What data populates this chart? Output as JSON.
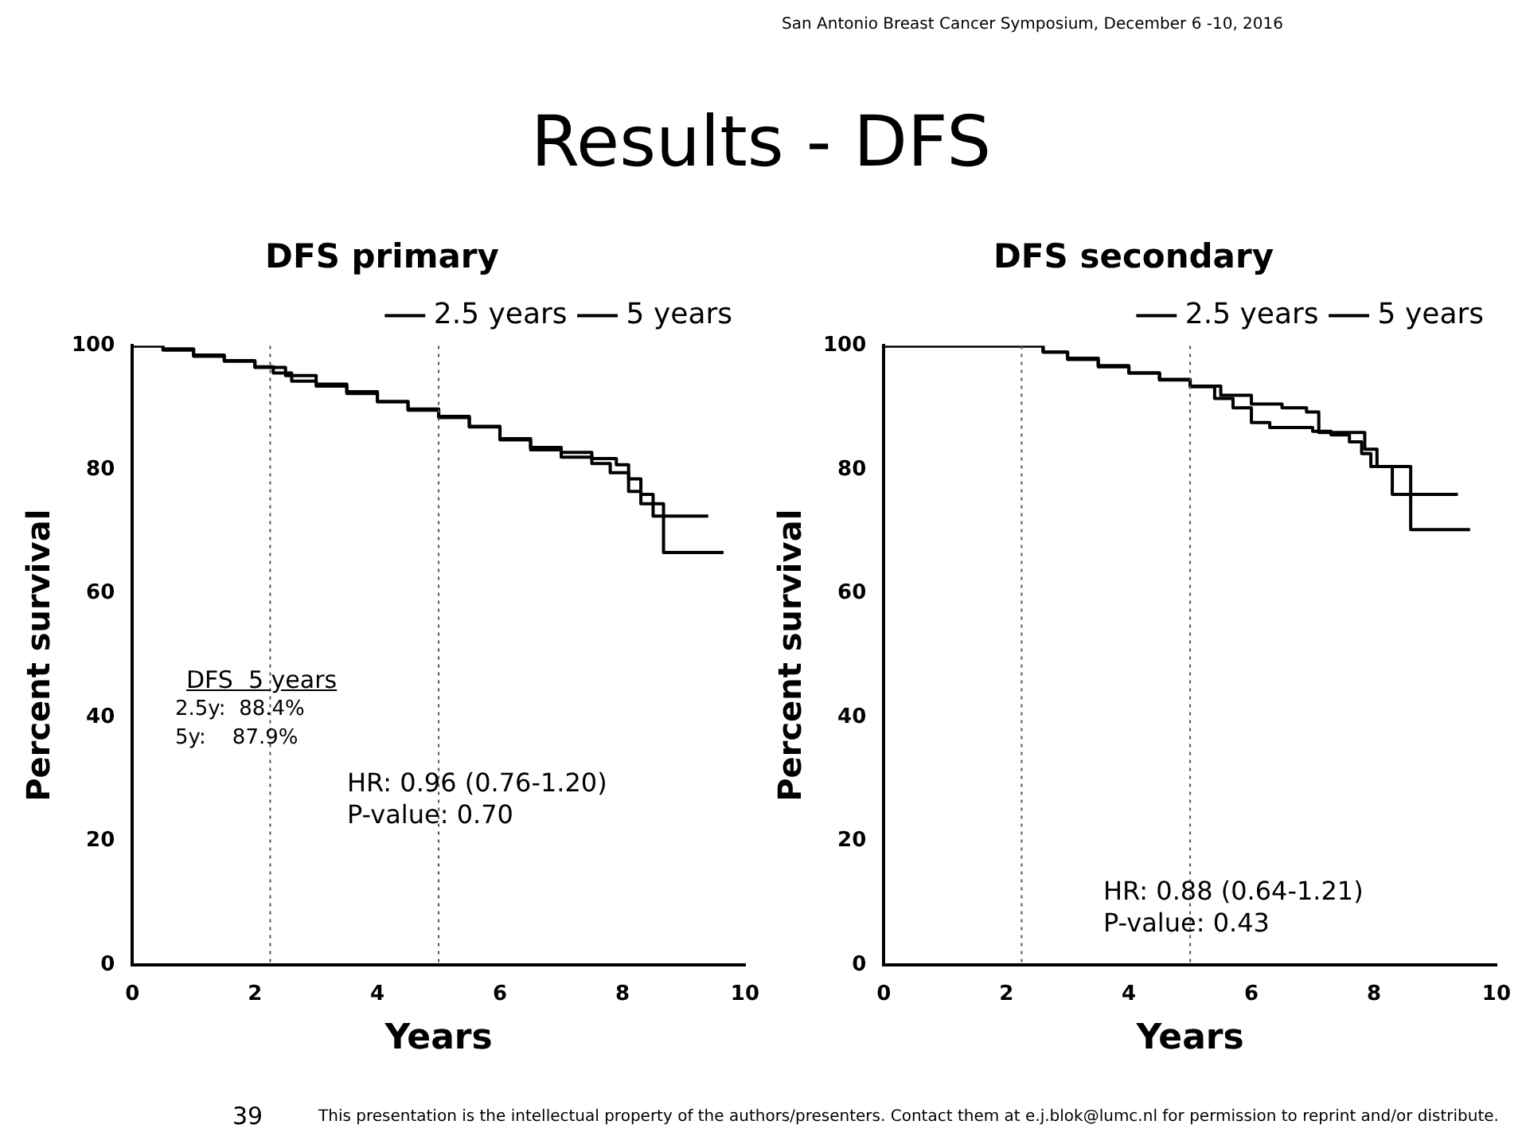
{
  "chart_data": [
    {
      "type": "other",
      "title": "Results - DFS",
      "annotations": [
        "San Antonio Breast Cancer Symposium, December 6 -10, 2016",
        "39",
        "This presentation is the intellectual property of the authors/presenters. Contact them at e.j.blok@lumc.nl for permission to reprint and/or distribute."
      ]
    },
    {
      "type": "step",
      "title": "DFS primary",
      "xlabel": "Years",
      "ylabel": "Percent survival",
      "xlim": [
        0,
        10
      ],
      "xticks": [
        0,
        2,
        4,
        6,
        8,
        10
      ],
      "ylim": [
        0,
        100
      ],
      "yticks": [
        0,
        20,
        40,
        60,
        80,
        100
      ],
      "grid": false,
      "legend": "top right",
      "marker": "none",
      "series": [
        {
          "name": "2.5 years",
          "color": "#000000",
          "x": [
            0,
            0.5,
            1,
            1.5,
            2,
            2.5,
            3,
            3.5,
            4,
            4.5,
            5,
            5.5,
            6,
            6.5,
            7,
            7.5,
            7.9,
            8.1,
            8.3,
            8.5,
            9.4
          ],
          "values": [
            100,
            99.5,
            98.5,
            97.5,
            96.5,
            95.2,
            93.5,
            92.3,
            91,
            89.8,
            88.6,
            87,
            85,
            83.6,
            82.8,
            81.8,
            80.8,
            78.5,
            76,
            72.5,
            72.5
          ]
        },
        {
          "name": "5 years",
          "color": "#000000",
          "x": [
            0,
            0.5,
            1,
            1.5,
            2,
            2.3,
            2.6,
            3,
            3.5,
            4,
            4.5,
            5,
            5.5,
            6,
            6.5,
            7,
            7.5,
            7.8,
            8.1,
            8.3,
            8.67,
            9.65
          ],
          "values": [
            100,
            99.3,
            98.3,
            97.6,
            96.6,
            95.6,
            94.3,
            93.8,
            92.6,
            91,
            89.6,
            88.4,
            86.9,
            84.8,
            83.2,
            82,
            81,
            79.5,
            76.5,
            74.5,
            66.6,
            66.6
          ]
        }
      ],
      "ref_lines": [
        {
          "axis": "x",
          "value": 2.25,
          "color": "#555555",
          "line_style": "dotted"
        },
        {
          "axis": "x",
          "value": 5,
          "color": "#555555",
          "line_style": "dotted"
        }
      ],
      "annotations": [
        "DFS  5 years",
        "2.5y:  88.4%",
        "5y:    87.9%",
        "HR: 0.96 (0.76-1.20)",
        "P-value: 0.70"
      ]
    },
    {
      "type": "step",
      "title": "DFS secondary",
      "xlabel": "Years",
      "ylabel": "Percent survival",
      "xlim": [
        0,
        10
      ],
      "xticks": [
        0,
        2,
        4,
        6,
        8,
        10
      ],
      "ylim": [
        0,
        100
      ],
      "yticks": [
        0,
        20,
        40,
        60,
        80,
        100
      ],
      "grid": false,
      "legend": "top right",
      "marker": "none",
      "series": [
        {
          "name": "2.5 years",
          "color": "#000000",
          "x": [
            0,
            2.3,
            2.6,
            3,
            3.5,
            4,
            4.5,
            5,
            5.5,
            6,
            6.5,
            6.9,
            7.1,
            7.85,
            8.05,
            8.6,
            9.57
          ],
          "values": [
            100,
            100,
            99,
            98,
            96.8,
            95.6,
            94.6,
            93.5,
            92,
            90.6,
            90,
            89.3,
            86,
            83.3,
            80.5,
            70.3,
            70.3
          ]
        },
        {
          "name": "5 years",
          "color": "#000000",
          "x": [
            0,
            2.3,
            2.6,
            3,
            3.5,
            4,
            4.5,
            5,
            5.4,
            5.7,
            6,
            6.3,
            7,
            7.3,
            7.6,
            7.8,
            7.95,
            8.3,
            9.37
          ],
          "values": [
            100,
            100,
            99,
            97.8,
            96.6,
            95.6,
            94.5,
            93.4,
            91.5,
            90,
            87.6,
            86.8,
            86.2,
            85.6,
            84.5,
            82.6,
            80.5,
            76,
            76
          ]
        }
      ],
      "ref_lines": [
        {
          "axis": "x",
          "value": 2.25,
          "color": "#555555",
          "line_style": "dotted"
        },
        {
          "axis": "x",
          "value": 5,
          "color": "#555555",
          "line_style": "dotted"
        }
      ],
      "annotations": [
        "HR: 0.88 (0.64-1.21)",
        "P-value: 0.43"
      ]
    }
  ]
}
